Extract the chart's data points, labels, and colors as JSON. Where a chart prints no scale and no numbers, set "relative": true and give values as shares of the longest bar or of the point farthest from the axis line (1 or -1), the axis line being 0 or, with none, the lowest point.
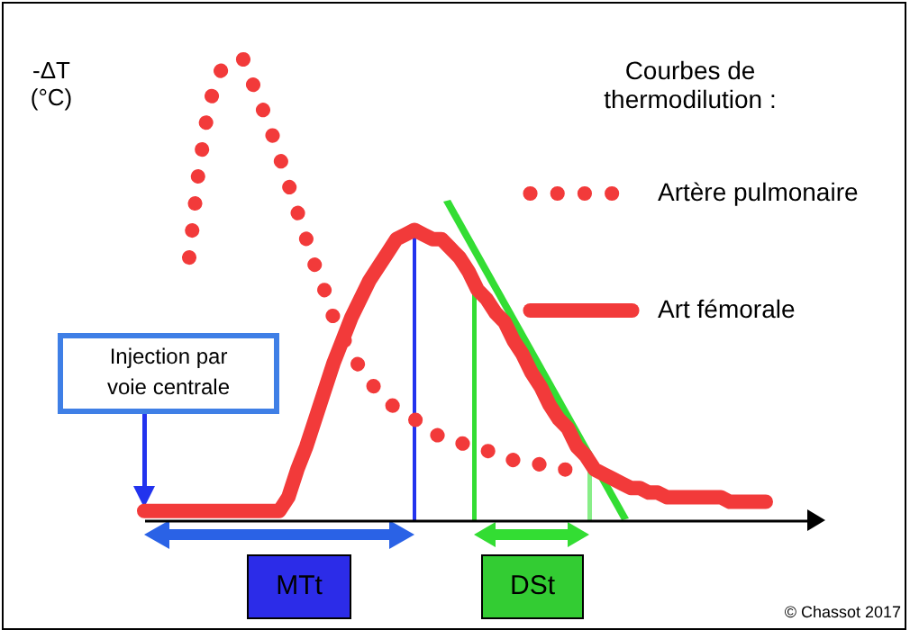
{
  "chart_data": {
    "type": "line",
    "relative": true,
    "ylabel": "-ΔT (°C)",
    "legend_title": "Courbes de thermodilution :",
    "legend": "top right",
    "categories": [
      null,
      null,
      null,
      null,
      null,
      null,
      null,
      null,
      null,
      null,
      null,
      null,
      null,
      null,
      null,
      null,
      null,
      null,
      null,
      null,
      null,
      null,
      null,
      null,
      null,
      null,
      null,
      null,
      null,
      null,
      null,
      null,
      null,
      null,
      null,
      null,
      null,
      null,
      null,
      null,
      null,
      null,
      null,
      null,
      null,
      null,
      null,
      null,
      null,
      null,
      null,
      null,
      null,
      null,
      null,
      null,
      null,
      null,
      null,
      null,
      null,
      null,
      null,
      null,
      null,
      null,
      null,
      null,
      null,
      null,
      null,
      null,
      null,
      null,
      null
    ],
    "series": [
      {
        "name": "Artère pulmonaire",
        "color": "#f23a3a",
        "line_style": "dotted",
        "values": [
          null,
          null,
          null,
          null,
          null,
          0.57,
          0.75,
          0.88,
          0.96,
          0.99,
          1.0,
          1.0,
          0.95,
          0.9,
          0.85,
          0.79,
          0.73,
          0.67,
          0.61,
          0.55,
          0.5,
          0.44,
          0.4,
          0.36,
          0.33,
          0.3,
          0.28,
          0.26,
          0.24,
          0.23,
          0.22,
          0.2,
          0.19,
          0.18,
          0.18,
          0.17,
          0.16,
          0.16,
          0.15,
          0.15,
          0.14,
          0.13,
          0.13,
          0.13,
          0.12,
          0.11,
          0.11,
          0.11,
          0.1,
          0.1,
          null,
          null,
          null,
          null,
          null,
          null,
          null,
          null,
          null,
          null,
          null,
          null,
          null,
          null,
          null,
          null,
          null,
          null,
          null,
          null,
          null,
          null,
          null,
          null,
          null
        ]
      },
      {
        "name": "Art fémorale",
        "color": "#f23a3a",
        "line_style": "solid",
        "values": [
          0.02,
          0.02,
          0.02,
          0.02,
          0.02,
          0.02,
          0.02,
          0.02,
          0.02,
          0.02,
          0.02,
          0.02,
          0.02,
          0.02,
          0.02,
          0.02,
          0.05,
          0.11,
          0.16,
          0.22,
          0.28,
          0.34,
          0.39,
          0.44,
          0.48,
          0.52,
          0.55,
          0.58,
          0.61,
          0.62,
          0.63,
          0.62,
          0.61,
          0.61,
          0.59,
          0.57,
          0.54,
          0.5,
          0.48,
          0.45,
          0.43,
          0.39,
          0.36,
          0.32,
          0.29,
          0.25,
          0.22,
          0.2,
          0.16,
          0.14,
          0.11,
          0.1,
          0.09,
          0.08,
          0.07,
          0.07,
          0.06,
          0.06,
          0.05,
          0.05,
          0.05,
          0.05,
          0.05,
          0.05,
          0.05,
          0.04,
          0.04,
          0.04,
          0.04,
          0.04,
          null,
          null,
          null,
          null,
          null
        ]
      }
    ],
    "annotations": [
      "Injection par voie centrale",
      "MTt",
      "DSt",
      "© Chassot 2017"
    ]
  }
}
